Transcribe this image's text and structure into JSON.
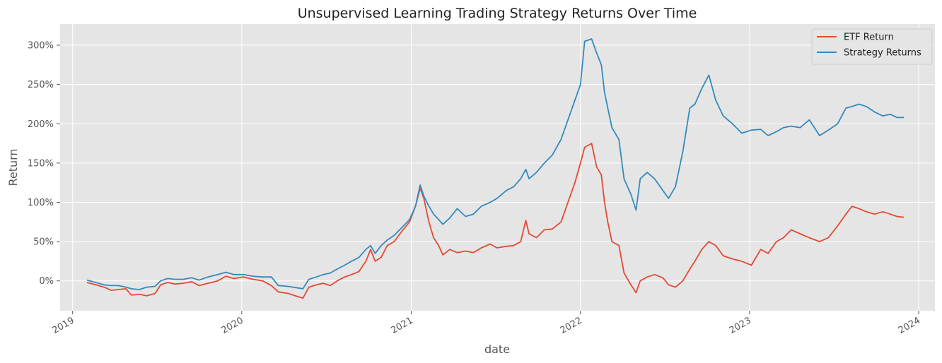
{
  "chart_data": {
    "type": "line",
    "title": "Unsupervised Learning Trading Strategy Returns Over Time",
    "xlabel": "date",
    "ylabel": "Return",
    "x_ticks": [
      "2019",
      "2020",
      "2021",
      "2022",
      "2023",
      "2024"
    ],
    "y_ticks": [
      {
        "value": 0,
        "label": "0%"
      },
      {
        "value": 0.5,
        "label": "50%"
      },
      {
        "value": 1.0,
        "label": "100%"
      },
      {
        "value": 1.5,
        "label": "150%"
      },
      {
        "value": 2.0,
        "label": "200%"
      },
      {
        "value": 2.5,
        "label": "250%"
      },
      {
        "value": 3.0,
        "label": "300%"
      }
    ],
    "xlim": [
      "2018-12-05",
      "2024-02-05"
    ],
    "ylim": [
      -0.38,
      3.27
    ],
    "grid": true,
    "legend_position": "top-right",
    "colors": {
      "background": "#e5e5e5",
      "grid": "#ffffff"
    },
    "series": [
      {
        "name": "ETF Return",
        "color": "#e24a33",
        "points": [
          [
            "2019-02-01",
            -0.02
          ],
          [
            "2019-02-20",
            -0.05
          ],
          [
            "2019-03-10",
            -0.08
          ],
          [
            "2019-03-25",
            -0.12
          ],
          [
            "2019-04-10",
            -0.11
          ],
          [
            "2019-04-26",
            -0.1
          ],
          [
            "2019-05-08",
            -0.18
          ],
          [
            "2019-05-25",
            -0.17
          ],
          [
            "2019-06-10",
            -0.19
          ],
          [
            "2019-06-28",
            -0.16
          ],
          [
            "2019-07-10",
            -0.05
          ],
          [
            "2019-07-25",
            -0.02
          ],
          [
            "2019-08-10",
            -0.04
          ],
          [
            "2019-08-28",
            -0.03
          ],
          [
            "2019-09-15",
            -0.01
          ],
          [
            "2019-10-01",
            -0.06
          ],
          [
            "2019-10-20",
            -0.03
          ],
          [
            "2019-11-10",
            0.0
          ],
          [
            "2019-11-28",
            0.06
          ],
          [
            "2019-12-15",
            0.03
          ],
          [
            "2020-01-05",
            0.05
          ],
          [
            "2020-01-25",
            0.02
          ],
          [
            "2020-02-15",
            0.0
          ],
          [
            "2020-03-05",
            -0.06
          ],
          [
            "2020-03-20",
            -0.14
          ],
          [
            "2020-04-10",
            -0.16
          ],
          [
            "2020-05-01",
            -0.2
          ],
          [
            "2020-05-12",
            -0.22
          ],
          [
            "2020-05-25",
            -0.08
          ],
          [
            "2020-06-10",
            -0.05
          ],
          [
            "2020-06-25",
            -0.03
          ],
          [
            "2020-07-10",
            -0.06
          ],
          [
            "2020-07-25",
            0.0
          ],
          [
            "2020-08-10",
            0.05
          ],
          [
            "2020-08-25",
            0.08
          ],
          [
            "2020-09-10",
            0.12
          ],
          [
            "2020-09-25",
            0.25
          ],
          [
            "2020-10-05",
            0.4
          ],
          [
            "2020-10-15",
            0.25
          ],
          [
            "2020-10-28",
            0.3
          ],
          [
            "2020-11-10",
            0.45
          ],
          [
            "2020-11-25",
            0.5
          ],
          [
            "2020-12-10",
            0.62
          ],
          [
            "2020-12-28",
            0.75
          ],
          [
            "2021-01-10",
            0.95
          ],
          [
            "2021-01-20",
            1.18
          ],
          [
            "2021-01-28",
            1.05
          ],
          [
            "2021-02-08",
            0.75
          ],
          [
            "2021-02-18",
            0.55
          ],
          [
            "2021-03-01",
            0.45
          ],
          [
            "2021-03-10",
            0.33
          ],
          [
            "2021-03-25",
            0.4
          ],
          [
            "2021-04-10",
            0.36
          ],
          [
            "2021-04-28",
            0.38
          ],
          [
            "2021-05-15",
            0.36
          ],
          [
            "2021-06-01",
            0.42
          ],
          [
            "2021-06-20",
            0.47
          ],
          [
            "2021-07-05",
            0.42
          ],
          [
            "2021-07-25",
            0.44
          ],
          [
            "2021-08-10",
            0.45
          ],
          [
            "2021-08-25",
            0.5
          ],
          [
            "2021-09-05",
            0.77
          ],
          [
            "2021-09-12",
            0.6
          ],
          [
            "2021-09-28",
            0.55
          ],
          [
            "2021-10-15",
            0.65
          ],
          [
            "2021-11-01",
            0.66
          ],
          [
            "2021-11-20",
            0.75
          ],
          [
            "2021-12-05",
            1.0
          ],
          [
            "2021-12-20",
            1.25
          ],
          [
            "2022-01-01",
            1.5
          ],
          [
            "2022-01-10",
            1.7
          ],
          [
            "2022-01-25",
            1.75
          ],
          [
            "2022-02-05",
            1.45
          ],
          [
            "2022-02-15",
            1.35
          ],
          [
            "2022-02-22",
            1.0
          ],
          [
            "2022-03-01",
            0.75
          ],
          [
            "2022-03-10",
            0.5
          ],
          [
            "2022-03-25",
            0.45
          ],
          [
            "2022-04-05",
            0.1
          ],
          [
            "2022-04-20",
            -0.05
          ],
          [
            "2022-05-01",
            -0.15
          ],
          [
            "2022-05-10",
            0.0
          ],
          [
            "2022-05-25",
            0.05
          ],
          [
            "2022-06-10",
            0.08
          ],
          [
            "2022-06-28",
            0.04
          ],
          [
            "2022-07-10",
            -0.05
          ],
          [
            "2022-07-25",
            -0.08
          ],
          [
            "2022-08-10",
            0.0
          ],
          [
            "2022-08-25",
            0.15
          ],
          [
            "2022-09-05",
            0.25
          ],
          [
            "2022-09-20",
            0.4
          ],
          [
            "2022-10-05",
            0.5
          ],
          [
            "2022-10-20",
            0.45
          ],
          [
            "2022-11-05",
            0.32
          ],
          [
            "2022-11-25",
            0.28
          ],
          [
            "2022-12-15",
            0.25
          ],
          [
            "2023-01-05",
            0.2
          ],
          [
            "2023-01-25",
            0.4
          ],
          [
            "2023-02-10",
            0.35
          ],
          [
            "2023-02-28",
            0.5
          ],
          [
            "2023-03-15",
            0.55
          ],
          [
            "2023-04-01",
            0.65
          ],
          [
            "2023-04-20",
            0.6
          ],
          [
            "2023-05-10",
            0.55
          ],
          [
            "2023-06-01",
            0.5
          ],
          [
            "2023-06-20",
            0.55
          ],
          [
            "2023-07-10",
            0.7
          ],
          [
            "2023-07-28",
            0.85
          ],
          [
            "2023-08-10",
            0.95
          ],
          [
            "2023-08-25",
            0.92
          ],
          [
            "2023-09-10",
            0.88
          ],
          [
            "2023-09-28",
            0.85
          ],
          [
            "2023-10-15",
            0.88
          ],
          [
            "2023-11-01",
            0.85
          ],
          [
            "2023-11-15",
            0.82
          ],
          [
            "2023-11-30",
            0.81
          ]
        ]
      },
      {
        "name": "Strategy Returns",
        "color": "#348abd",
        "points": [
          [
            "2019-02-01",
            0.01
          ],
          [
            "2019-02-20",
            -0.02
          ],
          [
            "2019-03-10",
            -0.05
          ],
          [
            "2019-03-25",
            -0.06
          ],
          [
            "2019-04-10",
            -0.06
          ],
          [
            "2019-04-26",
            -0.08
          ],
          [
            "2019-05-08",
            -0.1
          ],
          [
            "2019-05-25",
            -0.11
          ],
          [
            "2019-06-10",
            -0.08
          ],
          [
            "2019-06-28",
            -0.07
          ],
          [
            "2019-07-10",
            0.0
          ],
          [
            "2019-07-25",
            0.03
          ],
          [
            "2019-08-10",
            0.02
          ],
          [
            "2019-08-28",
            0.02
          ],
          [
            "2019-09-15",
            0.04
          ],
          [
            "2019-10-01",
            0.01
          ],
          [
            "2019-10-20",
            0.05
          ],
          [
            "2019-11-10",
            0.08
          ],
          [
            "2019-11-28",
            0.11
          ],
          [
            "2019-12-15",
            0.08
          ],
          [
            "2020-01-05",
            0.08
          ],
          [
            "2020-01-25",
            0.06
          ],
          [
            "2020-02-15",
            0.05
          ],
          [
            "2020-03-05",
            0.05
          ],
          [
            "2020-03-20",
            -0.06
          ],
          [
            "2020-04-10",
            -0.07
          ],
          [
            "2020-05-01",
            -0.09
          ],
          [
            "2020-05-12",
            -0.1
          ],
          [
            "2020-05-25",
            0.02
          ],
          [
            "2020-06-10",
            0.05
          ],
          [
            "2020-06-25",
            0.08
          ],
          [
            "2020-07-10",
            0.1
          ],
          [
            "2020-07-25",
            0.15
          ],
          [
            "2020-08-10",
            0.2
          ],
          [
            "2020-08-25",
            0.25
          ],
          [
            "2020-09-10",
            0.3
          ],
          [
            "2020-09-25",
            0.4
          ],
          [
            "2020-10-05",
            0.45
          ],
          [
            "2020-10-15",
            0.35
          ],
          [
            "2020-10-28",
            0.45
          ],
          [
            "2020-11-10",
            0.52
          ],
          [
            "2020-11-25",
            0.58
          ],
          [
            "2020-12-10",
            0.67
          ],
          [
            "2020-12-28",
            0.78
          ],
          [
            "2021-01-10",
            0.95
          ],
          [
            "2021-01-20",
            1.22
          ],
          [
            "2021-01-28",
            1.08
          ],
          [
            "2021-02-08",
            0.95
          ],
          [
            "2021-02-18",
            0.85
          ],
          [
            "2021-03-01",
            0.78
          ],
          [
            "2021-03-10",
            0.72
          ],
          [
            "2021-03-25",
            0.8
          ],
          [
            "2021-04-10",
            0.92
          ],
          [
            "2021-04-28",
            0.82
          ],
          [
            "2021-05-15",
            0.85
          ],
          [
            "2021-06-01",
            0.95
          ],
          [
            "2021-06-20",
            1.0
          ],
          [
            "2021-07-05",
            1.05
          ],
          [
            "2021-07-25",
            1.15
          ],
          [
            "2021-08-10",
            1.2
          ],
          [
            "2021-08-25",
            1.3
          ],
          [
            "2021-09-05",
            1.42
          ],
          [
            "2021-09-12",
            1.3
          ],
          [
            "2021-09-28",
            1.38
          ],
          [
            "2021-10-15",
            1.5
          ],
          [
            "2021-11-01",
            1.6
          ],
          [
            "2021-11-20",
            1.8
          ],
          [
            "2021-12-05",
            2.05
          ],
          [
            "2021-12-20",
            2.3
          ],
          [
            "2022-01-01",
            2.5
          ],
          [
            "2022-01-10",
            3.05
          ],
          [
            "2022-01-25",
            3.08
          ],
          [
            "2022-02-05",
            2.9
          ],
          [
            "2022-02-15",
            2.75
          ],
          [
            "2022-02-22",
            2.4
          ],
          [
            "2022-03-01",
            2.2
          ],
          [
            "2022-03-10",
            1.95
          ],
          [
            "2022-03-25",
            1.8
          ],
          [
            "2022-04-05",
            1.3
          ],
          [
            "2022-04-20",
            1.1
          ],
          [
            "2022-05-01",
            0.9
          ],
          [
            "2022-05-10",
            1.3
          ],
          [
            "2022-05-25",
            1.38
          ],
          [
            "2022-06-10",
            1.3
          ],
          [
            "2022-06-28",
            1.15
          ],
          [
            "2022-07-10",
            1.05
          ],
          [
            "2022-07-25",
            1.2
          ],
          [
            "2022-08-10",
            1.65
          ],
          [
            "2022-08-25",
            2.2
          ],
          [
            "2022-09-05",
            2.25
          ],
          [
            "2022-09-20",
            2.45
          ],
          [
            "2022-10-05",
            2.62
          ],
          [
            "2022-10-20",
            2.3
          ],
          [
            "2022-11-05",
            2.1
          ],
          [
            "2022-11-25",
            2.0
          ],
          [
            "2022-12-15",
            1.88
          ],
          [
            "2023-01-05",
            1.92
          ],
          [
            "2023-01-25",
            1.93
          ],
          [
            "2023-02-10",
            1.85
          ],
          [
            "2023-02-28",
            1.9
          ],
          [
            "2023-03-15",
            1.95
          ],
          [
            "2023-04-01",
            1.97
          ],
          [
            "2023-04-20",
            1.95
          ],
          [
            "2023-05-10",
            2.05
          ],
          [
            "2023-06-01",
            1.85
          ],
          [
            "2023-06-20",
            1.92
          ],
          [
            "2023-07-10",
            2.0
          ],
          [
            "2023-07-28",
            2.2
          ],
          [
            "2023-08-10",
            2.22
          ],
          [
            "2023-08-25",
            2.25
          ],
          [
            "2023-09-10",
            2.22
          ],
          [
            "2023-09-28",
            2.15
          ],
          [
            "2023-10-15",
            2.1
          ],
          [
            "2023-11-01",
            2.12
          ],
          [
            "2023-11-15",
            2.08
          ],
          [
            "2023-11-30",
            2.08
          ]
        ]
      }
    ]
  }
}
